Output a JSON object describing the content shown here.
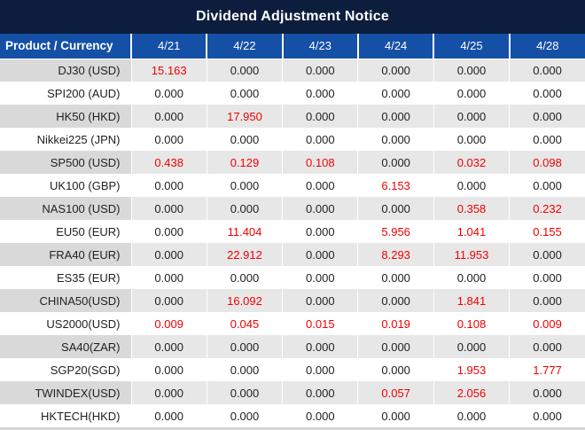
{
  "title": "Dividend Adjustment Notice",
  "table": {
    "header": {
      "product_col": "Product / Currency",
      "dates": [
        "4/21",
        "4/22",
        "4/23",
        "4/24",
        "4/25",
        "4/28"
      ]
    },
    "rows": [
      {
        "product": "DJ30 (USD)",
        "values": [
          "15.163",
          "0.000",
          "0.000",
          "0.000",
          "0.000",
          "0.000"
        ],
        "red": [
          true,
          false,
          false,
          false,
          false,
          false
        ]
      },
      {
        "product": "SPI200 (AUD)",
        "values": [
          "0.000",
          "0.000",
          "0.000",
          "0.000",
          "0.000",
          "0.000"
        ],
        "red": [
          false,
          false,
          false,
          false,
          false,
          false
        ]
      },
      {
        "product": "HK50 (HKD)",
        "values": [
          "0.000",
          "17.950",
          "0.000",
          "0.000",
          "0.000",
          "0.000"
        ],
        "red": [
          false,
          true,
          false,
          false,
          false,
          false
        ]
      },
      {
        "product": "Nikkei225 (JPN)",
        "values": [
          "0.000",
          "0.000",
          "0.000",
          "0.000",
          "0.000",
          "0.000"
        ],
        "red": [
          false,
          false,
          false,
          false,
          false,
          false
        ]
      },
      {
        "product": "SP500 (USD)",
        "values": [
          "0.438",
          "0.129",
          "0.108",
          "0.000",
          "0.032",
          "0.098"
        ],
        "red": [
          true,
          true,
          true,
          false,
          true,
          true
        ]
      },
      {
        "product": "UK100 (GBP)",
        "values": [
          "0.000",
          "0.000",
          "0.000",
          "6.153",
          "0.000",
          "0.000"
        ],
        "red": [
          false,
          false,
          false,
          true,
          false,
          false
        ]
      },
      {
        "product": "NAS100 (USD)",
        "values": [
          "0.000",
          "0.000",
          "0.000",
          "0.000",
          "0.358",
          "0.232"
        ],
        "red": [
          false,
          false,
          false,
          false,
          true,
          true
        ]
      },
      {
        "product": "EU50 (EUR)",
        "values": [
          "0.000",
          "11.404",
          "0.000",
          "5.956",
          "1.041",
          "0.155"
        ],
        "red": [
          false,
          true,
          false,
          true,
          true,
          true
        ]
      },
      {
        "product": "FRA40 (EUR)",
        "values": [
          "0.000",
          "22.912",
          "0.000",
          "8.293",
          "11.953",
          "0.000"
        ],
        "red": [
          false,
          true,
          false,
          true,
          true,
          false
        ]
      },
      {
        "product": "ES35 (EUR)",
        "values": [
          "0.000",
          "0.000",
          "0.000",
          "0.000",
          "0.000",
          "0.000"
        ],
        "red": [
          false,
          false,
          false,
          false,
          false,
          false
        ]
      },
      {
        "product": "CHINA50(USD)",
        "values": [
          "0.000",
          "16.092",
          "0.000",
          "0.000",
          "1.841",
          "0.000"
        ],
        "red": [
          false,
          true,
          false,
          false,
          true,
          false
        ]
      },
      {
        "product": "US2000(USD)",
        "values": [
          "0.009",
          "0.045",
          "0.015",
          "0.019",
          "0.108",
          "0.009"
        ],
        "red": [
          true,
          true,
          true,
          true,
          true,
          true
        ]
      },
      {
        "product": "SA40(ZAR)",
        "values": [
          "0.000",
          "0.000",
          "0.000",
          "0.000",
          "0.000",
          "0.000"
        ],
        "red": [
          false,
          false,
          false,
          false,
          false,
          false
        ]
      },
      {
        "product": "SGP20(SGD)",
        "values": [
          "0.000",
          "0.000",
          "0.000",
          "0.000",
          "1.953",
          "1.777"
        ],
        "red": [
          false,
          false,
          false,
          false,
          true,
          true
        ]
      },
      {
        "product": "TWINDEX(USD)",
        "values": [
          "0.000",
          "0.000",
          "0.000",
          "0.057",
          "2.056",
          "0.000"
        ],
        "red": [
          false,
          false,
          false,
          true,
          true,
          false
        ]
      },
      {
        "product": "HKTECH(HKD)",
        "values": [
          "0.000",
          "0.000",
          "0.000",
          "0.000",
          "0.000",
          "0.000"
        ],
        "red": [
          false,
          false,
          false,
          false,
          false,
          false
        ]
      }
    ]
  },
  "colors": {
    "title_bg": "#0d1d3d",
    "header_bg": "#1450a6",
    "row_gray_product": "#d9d9d9",
    "row_gray_value": "#e7e7e7",
    "value_text": "#212121",
    "value_red": "#f20000"
  }
}
